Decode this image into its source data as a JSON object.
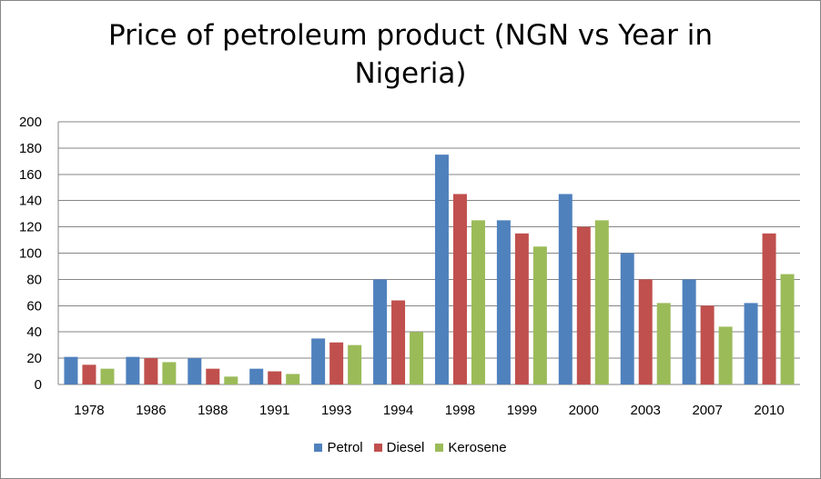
{
  "chart_data": {
    "type": "bar",
    "title": "Price of petroleum product (NGN vs Year in Nigeria)",
    "title_lines": [
      "Price of petroleum product (NGN vs Year in",
      "Nigeria)"
    ],
    "categories": [
      "1978",
      "1986",
      "1988",
      "1991",
      "1993",
      "1994",
      "1998",
      "1999",
      "2000",
      "2003",
      "2007",
      "2010"
    ],
    "series": [
      {
        "name": "Petrol",
        "color": "#4F81BD",
        "values": [
          21,
          21,
          20,
          12,
          35,
          80,
          175,
          125,
          145,
          100,
          80,
          62
        ]
      },
      {
        "name": "Diesel",
        "color": "#C0504D",
        "values": [
          15,
          20,
          12,
          10,
          32,
          64,
          145,
          115,
          120,
          80,
          60,
          115
        ]
      },
      {
        "name": "Kerosene",
        "color": "#9BBB59",
        "values": [
          12,
          17,
          6,
          8,
          30,
          40,
          125,
          105,
          125,
          62,
          44,
          84
        ]
      }
    ],
    "ylim": [
      0,
      200
    ],
    "yticks": [
      "0",
      "20",
      "40",
      "60",
      "80",
      "100",
      "120",
      "140",
      "160",
      "180",
      "200"
    ],
    "xlabel": "",
    "ylabel": "",
    "grid": true,
    "legend_position": "bottom"
  }
}
